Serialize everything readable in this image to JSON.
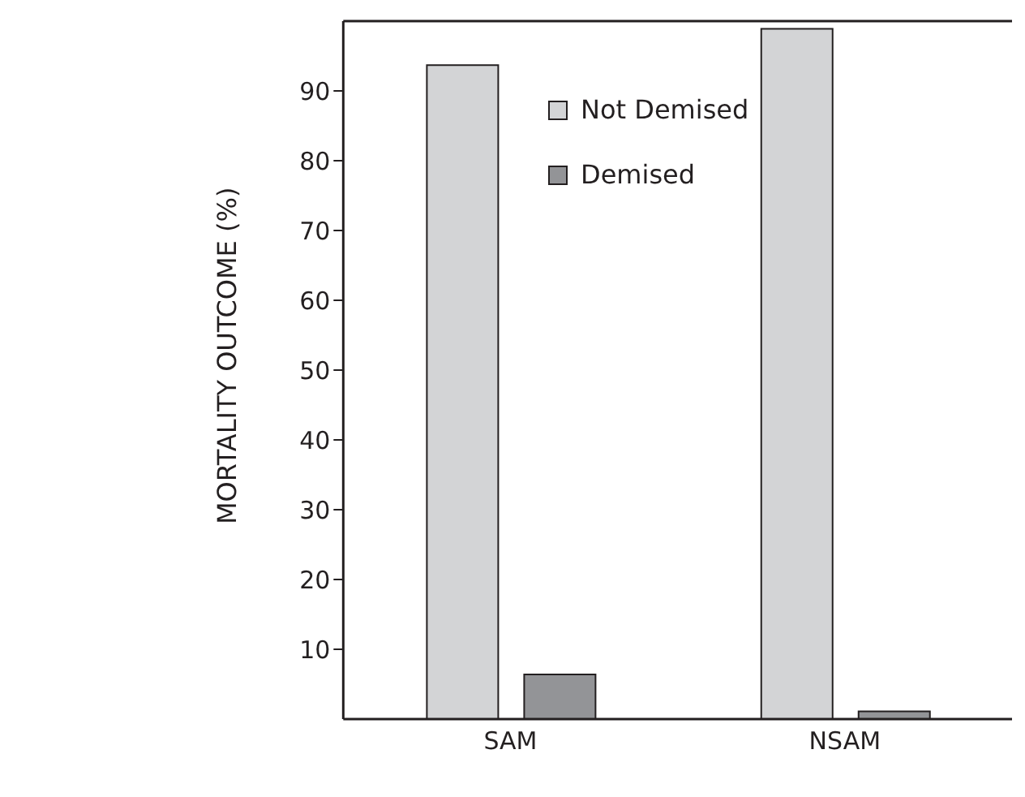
{
  "chart_data": {
    "type": "bar",
    "ylabel": "MORTALITY OUTCOME (%)",
    "categories": [
      "SAM",
      "NSAM"
    ],
    "series": [
      {
        "name": "Not Demised",
        "color": "#d3d4d6",
        "values": [
          93.7,
          98.9
        ]
      },
      {
        "name": "Demised",
        "color": "#939497",
        "values": [
          6.4,
          1.1
        ]
      }
    ],
    "ylim": [
      0,
      100
    ],
    "yticks": [
      10,
      20,
      30,
      40,
      50,
      60,
      70,
      80,
      90
    ],
    "grid": false,
    "legend": "top"
  }
}
